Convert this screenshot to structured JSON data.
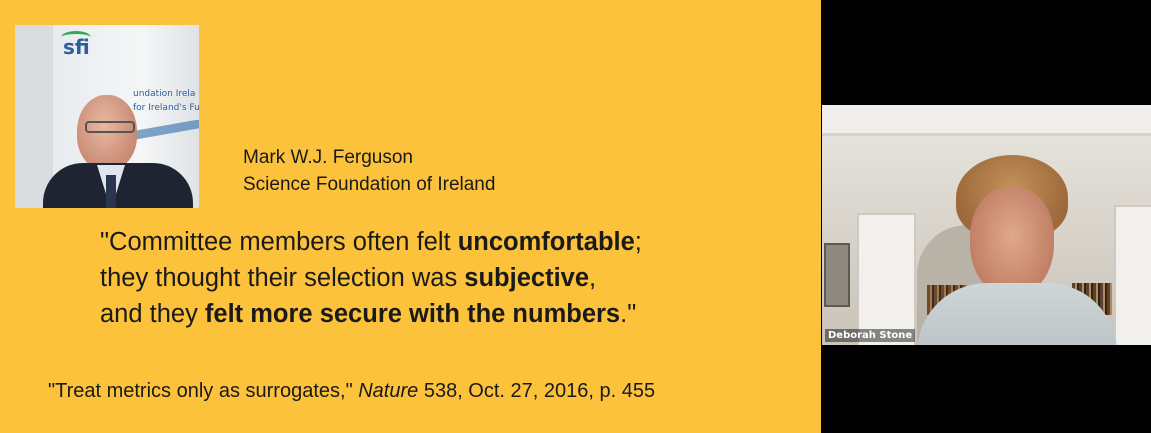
{
  "slide": {
    "background_color": "#fcc23b",
    "photo": {
      "logo_text": "sfi",
      "banner_text_line1": "undation Irela",
      "banner_text_line2": "for Ireland's Fu"
    },
    "speaker_name": "Mark W.J. Ferguson",
    "speaker_org": "Science Foundation of Ireland",
    "quote": {
      "line1_pre": "\"Committee members often felt ",
      "line1_bold": "uncomfortable",
      "line1_post": ";",
      "line2_pre": "they thought their selection was ",
      "line2_bold": "subjective",
      "line2_post": ",",
      "line3_pre": "and they ",
      "line3_bold": "felt more secure with the numbers",
      "line3_post": ".\""
    },
    "citation": {
      "pre": "\"Treat metrics only as surrogates,\" ",
      "italic": "Nature",
      "post": " 538, Oct. 27, 2016, p. 455"
    }
  },
  "participant": {
    "name": "Deborah Stone"
  }
}
